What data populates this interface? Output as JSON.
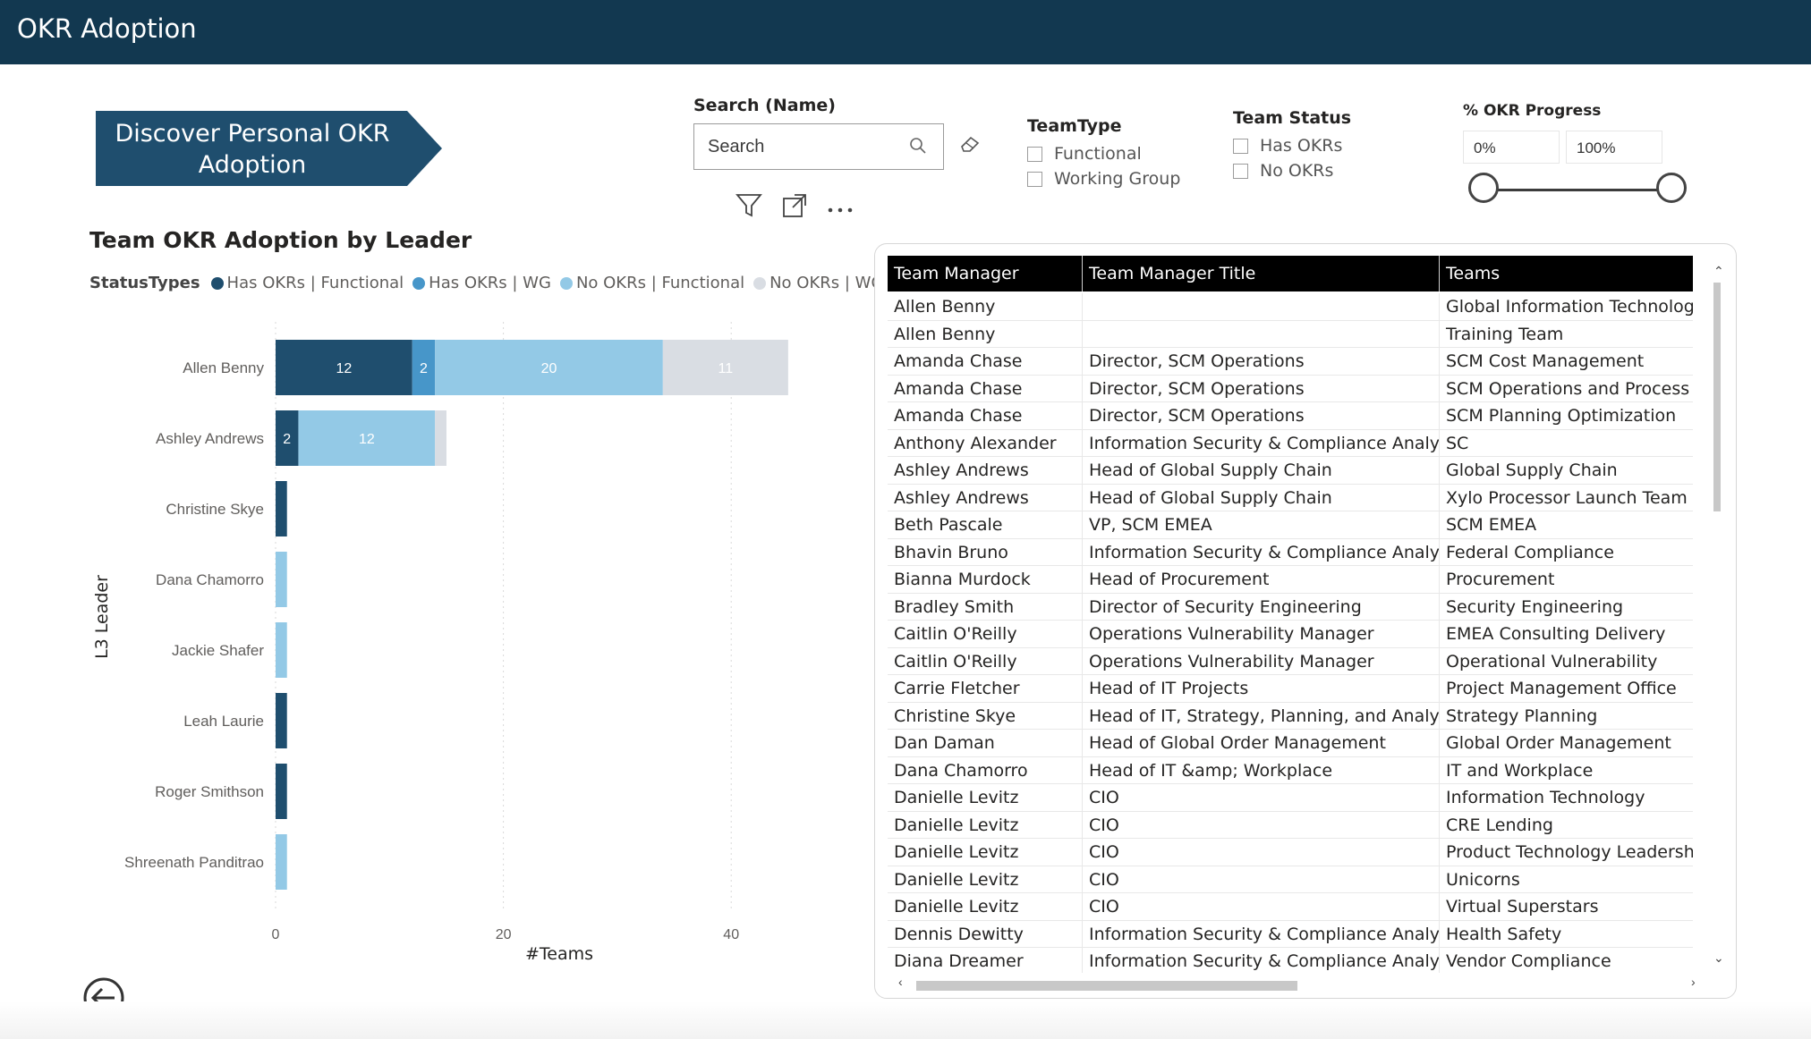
{
  "app": {
    "title": "OKR Adoption"
  },
  "banner": {
    "text": "Discover Personal OKR Adoption",
    "color": "#1f4e6e"
  },
  "search": {
    "label": "Search (Name)",
    "placeholder": "Search"
  },
  "filters": {
    "team_type": {
      "label": "TeamType",
      "options": [
        "Functional",
        "Working Group"
      ]
    },
    "team_status": {
      "label": "Team Status",
      "options": [
        "Has OKRs",
        "No OKRs"
      ]
    },
    "progress": {
      "label": "% OKR Progress",
      "min": "0%",
      "max": "100%"
    }
  },
  "chart_data": {
    "type": "bar",
    "orientation": "horizontal",
    "stacked": true,
    "title": "Team OKR Adoption by Leader",
    "legend_title": "StatusTypes",
    "legend_position": "top-left",
    "xlabel": "#Teams",
    "ylabel": "L3 Leader",
    "xlim": [
      0,
      45
    ],
    "xticks": [
      0,
      20,
      40
    ],
    "grid": true,
    "categories": [
      "Allen Benny",
      "Ashley Andrews",
      "Christine Skye",
      "Dana Chamorro",
      "Jackie Shafer",
      "Leah Laurie",
      "Roger Smithson",
      "Shreenath Panditrao"
    ],
    "series": [
      {
        "name": "Has OKRs | Functional",
        "color": "#1f4e6e",
        "values": [
          12,
          2,
          1,
          0,
          0,
          1,
          1,
          0
        ]
      },
      {
        "name": "Has OKRs | WG",
        "color": "#4796c9",
        "values": [
          2,
          0,
          0,
          0,
          0,
          0,
          0,
          0
        ]
      },
      {
        "name": "No OKRs | Functional",
        "color": "#93c9e6",
        "values": [
          20,
          12,
          0,
          1,
          1,
          0,
          0,
          1
        ]
      },
      {
        "name": "No OKRs | WG",
        "color": "#d9dde3",
        "values": [
          11,
          1,
          0,
          0,
          0,
          0,
          0,
          0
        ]
      }
    ]
  },
  "table": {
    "columns": [
      "Team Manager",
      "Team Manager Title",
      "Teams"
    ],
    "rows": [
      [
        "Allen Benny",
        "",
        "Global Information Technology"
      ],
      [
        "Allen Benny",
        "",
        "Training Team"
      ],
      [
        "Amanda Chase",
        "Director, SCM Operations",
        "SCM Cost Management"
      ],
      [
        "Amanda Chase",
        "Director, SCM Operations",
        "SCM Operations and Process Impro"
      ],
      [
        "Amanda Chase",
        "Director, SCM Operations",
        "SCM Planning Optimization"
      ],
      [
        "Anthony Alexander",
        "Information Security & Compliance Analyst",
        "SC"
      ],
      [
        "Ashley Andrews",
        "Head of Global Supply Chain",
        "Global Supply Chain"
      ],
      [
        "Ashley Andrews",
        "Head of Global Supply Chain",
        "Xylo Processor Launch Team"
      ],
      [
        "Beth Pascale",
        "VP, SCM EMEA",
        "SCM EMEA"
      ],
      [
        "Bhavin Bruno",
        "Information Security & Compliance Analyst",
        "Federal Compliance"
      ],
      [
        "Bianna Murdock",
        "Head of Procurement",
        "Procurement"
      ],
      [
        "Bradley Smith",
        "Director of Security Engineering",
        "Security Engineering"
      ],
      [
        "Caitlin O'Reilly",
        "Operations Vulnerability Manager",
        "EMEA Consulting Delivery"
      ],
      [
        "Caitlin O'Reilly",
        "Operations Vulnerability Manager",
        "Operational Vulnerability"
      ],
      [
        "Carrie Fletcher",
        "Head of IT Projects",
        "Project Management Office"
      ],
      [
        "Christine Skye",
        "Head of IT, Strategy, Planning, and Analytics",
        "Strategy Planning"
      ],
      [
        "Dan Daman",
        "Head of Global Order Management",
        "Global Order Management"
      ],
      [
        "Dana Chamorro",
        "Head of IT &amp; Workplace",
        "IT and Workplace"
      ],
      [
        "Danielle Levitz",
        "CIO",
        "Information Technology"
      ],
      [
        "Danielle Levitz",
        "CIO",
        "CRE Lending"
      ],
      [
        "Danielle Levitz",
        "CIO",
        "Product Technology Leadership"
      ],
      [
        "Danielle Levitz",
        "CIO",
        "Unicorns"
      ],
      [
        "Danielle Levitz",
        "CIO",
        "Virtual Superstars"
      ],
      [
        "Dennis Dewitty",
        "Information Security & Compliance Analyst",
        "Health Safety"
      ],
      [
        "Diana Dreamer",
        "Information Security & Compliance Analyst",
        "Vendor Compliance"
      ]
    ]
  }
}
